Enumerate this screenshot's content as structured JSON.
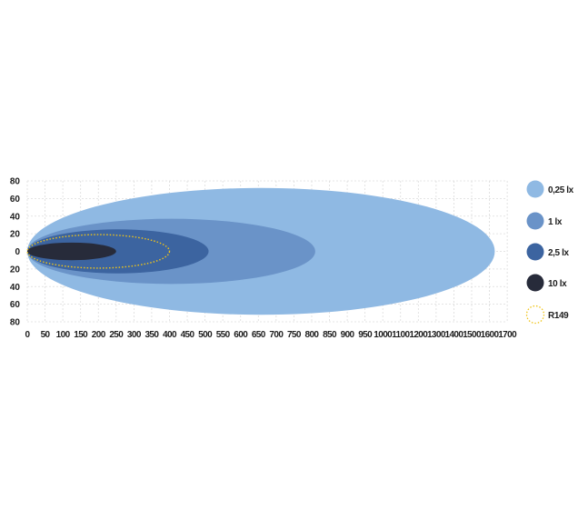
{
  "chart_data": {
    "type": "area",
    "title": "",
    "xlabel": "",
    "ylabel": "",
    "x_ticks": [
      0,
      50,
      100,
      150,
      200,
      250,
      300,
      350,
      400,
      450,
      500,
      550,
      600,
      650,
      700,
      750,
      800,
      850,
      900,
      950,
      1000,
      1100,
      1200,
      1300,
      1400,
      1500,
      1600,
      1700
    ],
    "y_ticks": [
      80,
      60,
      40,
      20,
      0,
      -20,
      -40,
      -60,
      -80
    ],
    "y_tick_labels": [
      "80",
      "60",
      "40",
      "20",
      "0",
      "20",
      "40",
      "60",
      "80"
    ],
    "xlim": [
      0,
      1700
    ],
    "ylim": [
      -80,
      80
    ],
    "grid": true,
    "legend_position": "right",
    "series": [
      {
        "name": "0,25 lx",
        "reach": 1630,
        "half_width": 72,
        "color": "#8fb9e3",
        "style": "filled"
      },
      {
        "name": "1 lx",
        "reach": 810,
        "half_width": 37,
        "color": "#6a93c8",
        "style": "filled"
      },
      {
        "name": "2,5 lx",
        "reach": 510,
        "half_width": 25,
        "color": "#3c64a0",
        "style": "filled"
      },
      {
        "name": "10 lx",
        "reach": 250,
        "half_width": 10,
        "color": "#272b3a",
        "style": "filled"
      },
      {
        "name": "R149",
        "reach": 400,
        "half_width": 19,
        "color": "#f0c419",
        "style": "dotted"
      }
    ]
  }
}
